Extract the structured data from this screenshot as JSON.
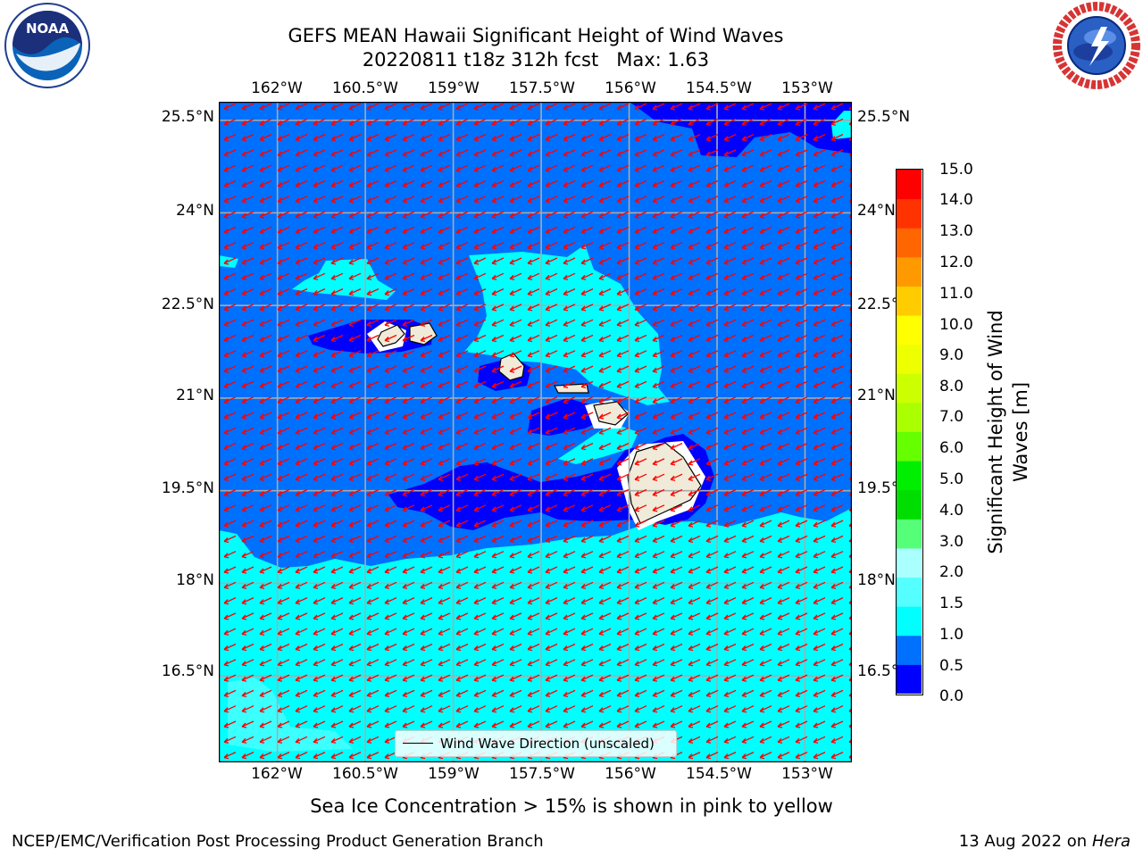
{
  "title": {
    "line1": "GEFS MEAN Hawaii Significant Height of Wind Waves",
    "line2": "20220811 t18z 312h fcst   Max: 1.63"
  },
  "logos": {
    "left": {
      "icon": "noaa-logo-icon",
      "text": "NOAA"
    },
    "right": {
      "icon": "nws-logo-icon",
      "ring_text": "NATIONAL WEATHER SERVICE"
    }
  },
  "axes": {
    "lon_labels": [
      "162°W",
      "160.5°W",
      "159°W",
      "157.5°W",
      "156°W",
      "154.5°W",
      "153°W"
    ],
    "lat_labels": [
      "25.5°N",
      "24°N",
      "22.5°N",
      "21°N",
      "19.5°N",
      "18°N",
      "16.5°N"
    ],
    "lon_values": [
      -162,
      -160.5,
      -159,
      -157.5,
      -156,
      -154.5,
      -153
    ],
    "lat_values": [
      25.5,
      24,
      22.5,
      21,
      19.5,
      18,
      16.5
    ],
    "lon_range": [
      -163,
      -152.2
    ],
    "lat_range": [
      15.1,
      25.8
    ],
    "grid": true
  },
  "legend": {
    "label": "Wind Wave Direction (unscaled)",
    "color": "#000000"
  },
  "colorbar": {
    "label": "Significant Height of Wind Waves [m]",
    "ticks": [
      "0.0",
      "0.5",
      "1.0",
      "1.5",
      "2.0",
      "3.0",
      "4.0",
      "5.0",
      "6.0",
      "7.0",
      "8.0",
      "9.0",
      "10.0",
      "11.0",
      "12.0",
      "13.0",
      "14.0",
      "15.0"
    ],
    "colors": [
      "#0000ff",
      "#0070ff",
      "#00ffff",
      "#55ffff",
      "#aaffff",
      "#55ff77",
      "#00dd00",
      "#00ee00",
      "#66ff00",
      "#aaff00",
      "#ccff00",
      "#eeff00",
      "#ffff00",
      "#ffcc00",
      "#ff9900",
      "#ff6600",
      "#ff3300",
      "#ff0000"
    ]
  },
  "map_colors": {
    "ocean_mid": "#0070ff",
    "ocean_low": "#0000ff",
    "ocean_high": "#00ffff",
    "land": "#f0ebd8",
    "arrows": "#ff0000",
    "grid": "#aaaaaa"
  },
  "wind_arrows": {
    "direction": "toward southwest"
  },
  "note": "Sea Ice Concentration > 15% is shown in pink to yellow",
  "footer": {
    "left": "NCEP/EMC/Verification Post Processing Product Generation Branch",
    "date": "13 Aug 2022 on",
    "machine": "Hera"
  }
}
